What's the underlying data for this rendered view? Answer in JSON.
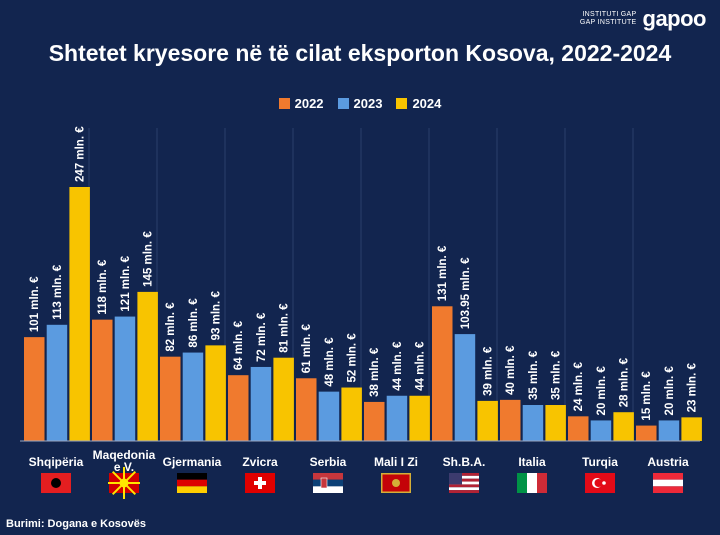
{
  "brand": {
    "line1": "INSTITUTI GAP",
    "line2": "GAP INSTITUTE",
    "logo": "gapoo"
  },
  "title": "Shtetet kryesore në të cilat eksporton Kosova, 2022-2024",
  "source": "Burimi: Dogana e Kosovës",
  "colors": {
    "2022": "#f07a2e",
    "2023": "#5b9be0",
    "2024": "#f8c400"
  },
  "chart_data": {
    "type": "bar",
    "title": "Shtetet kryesore në të cilat eksporton Kosova, 2022-2024",
    "xlabel": "",
    "ylabel": "",
    "ylim": [
      0,
      247
    ],
    "grid": false,
    "legend": "top",
    "categories": [
      "Shqipëria",
      "Maqedonia e V.",
      "Gjermania",
      "Zvicra",
      "Serbia",
      "Mali I Zi",
      "Sh.B.A.",
      "Italia",
      "Turqia",
      "Austria"
    ],
    "series": [
      {
        "name": "2022",
        "values": [
          101,
          118,
          82,
          64,
          61,
          38,
          131,
          40,
          24,
          15
        ],
        "labels": [
          "101 mln. €",
          "118 mln. €",
          "82 mln. €",
          "64 mln. €",
          "61 mln. €",
          "38 mln. €",
          "131 mln. €",
          "40 mln. €",
          "24 mln. €",
          "15 mln. €"
        ]
      },
      {
        "name": "2023",
        "values": [
          113,
          121,
          86,
          72,
          48,
          44,
          103.95,
          35,
          20,
          20
        ],
        "labels": [
          "113 mln. €",
          "121 mln. €",
          "86 mln. €",
          "72 mln. €",
          "48 mln. €",
          "44 mln. €",
          "103.95 mln. €",
          "35 mln. €",
          "20 mln. €",
          "20 mln. €"
        ]
      },
      {
        "name": "2024",
        "values": [
          247,
          145,
          93,
          81,
          52,
          44,
          39,
          35,
          28,
          23
        ],
        "labels": [
          "247 mln. €",
          "145 mln. €",
          "93 mln. €",
          "81 mln. €",
          "52 mln. €",
          "44 mln. €",
          "39 mln. €",
          "35 mln. €",
          "28 mln. €",
          "23 mln. €"
        ]
      }
    ],
    "flags": [
      "albania-flag-icon",
      "north-macedonia-flag-icon",
      "germany-flag-icon",
      "switzerland-flag-icon",
      "serbia-flag-icon",
      "montenegro-flag-icon",
      "usa-flag-icon",
      "italy-flag-icon",
      "turkey-flag-icon",
      "austria-flag-icon"
    ]
  }
}
